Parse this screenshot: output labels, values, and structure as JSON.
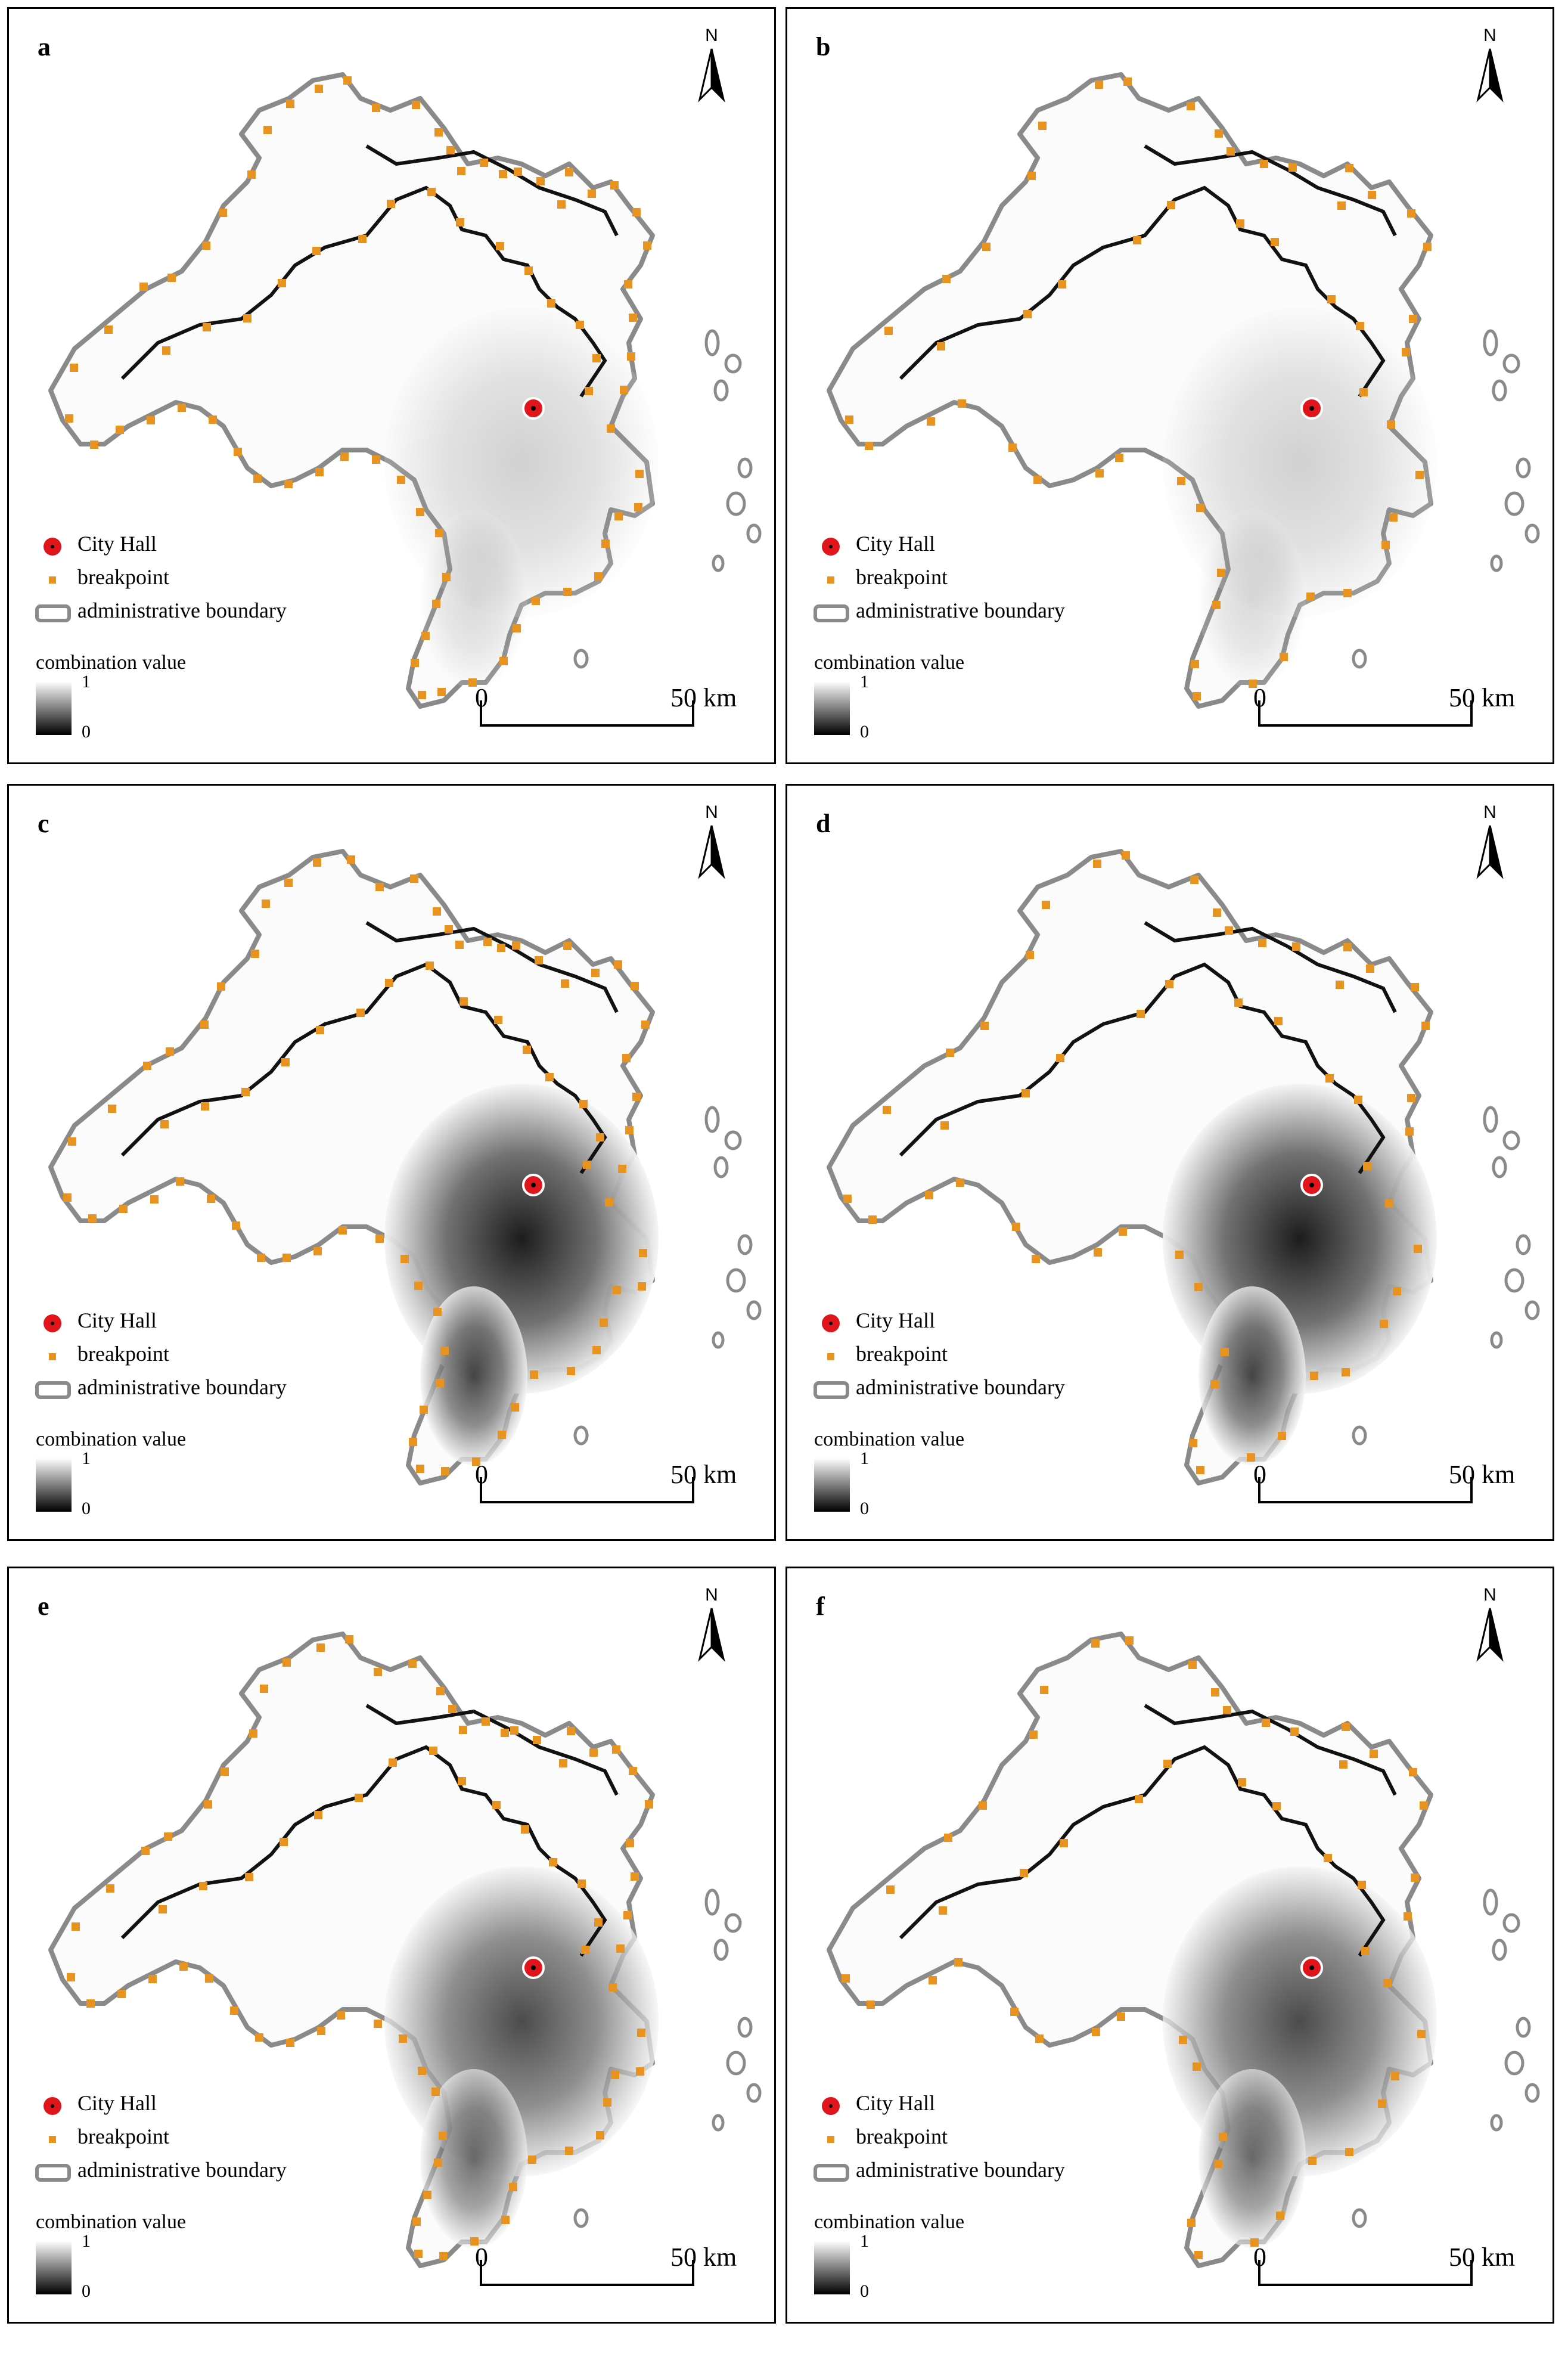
{
  "panels": [
    {
      "label": "a",
      "shade": "light"
    },
    {
      "label": "b",
      "shade": "light"
    },
    {
      "label": "c",
      "shade": "dark"
    },
    {
      "label": "d",
      "shade": "dark"
    },
    {
      "label": "e",
      "shade": "smooth"
    },
    {
      "label": "f",
      "shade": "smooth"
    }
  ],
  "legend": {
    "city_hall": "City Hall",
    "breakpoint": "breakpoint",
    "boundary": "administrative boundary",
    "combination_title": "combination value",
    "ramp_high": "1",
    "ramp_low": "0"
  },
  "north_label": "N",
  "scale": {
    "start": "0",
    "end": "50",
    "unit": "km"
  },
  "colors": {
    "city_hall": "#e0141b",
    "breakpoint": "#e8921f",
    "boundary": "#8a8a8a",
    "core": "#1a1a1a"
  }
}
